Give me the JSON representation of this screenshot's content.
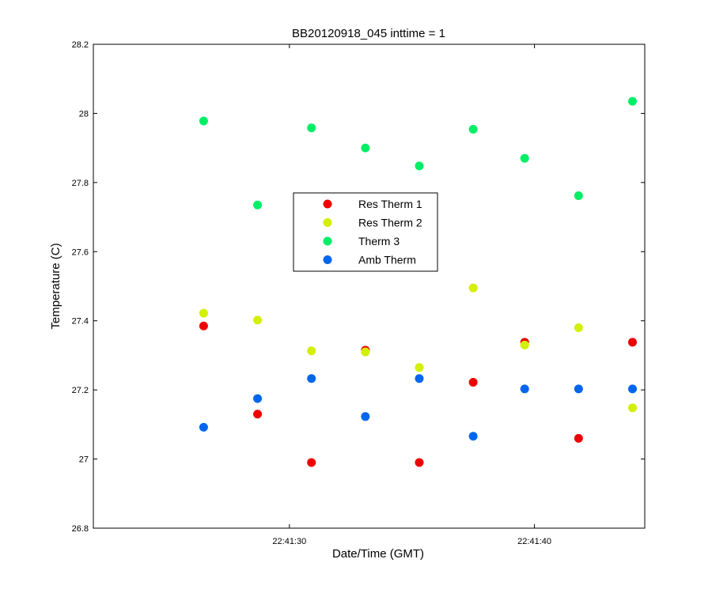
{
  "chart_data": {
    "type": "scatter",
    "title": "BB20120918_045 inttime = 1",
    "xlabel": "Date/Time (GMT)",
    "ylabel": "Temperature (C)",
    "xlim": [
      "22:41:22",
      "22:41:44.5"
    ],
    "ylim": [
      26.8,
      28.2
    ],
    "x_ticks": [
      "22:41:30",
      "22:41:40"
    ],
    "y_ticks": [
      26.8,
      27,
      27.2,
      27.4,
      27.6,
      27.8,
      28,
      28.2
    ],
    "y_tick_labels": [
      "26.8",
      "27",
      "27.2",
      "27.4",
      "27.6",
      "27.8",
      "28",
      "28.2"
    ],
    "grid": false,
    "legend_position": "center",
    "x": [
      "22:41:26.5",
      "22:41:28.7",
      "22:41:30.9",
      "22:41:33.1",
      "22:41:35.3",
      "22:41:37.5",
      "22:41:39.6",
      "22:41:41.8",
      "22:41:44"
    ],
    "series": [
      {
        "name": "Res Therm 1",
        "color": "#ee0000",
        "values": [
          27.385,
          27.13,
          26.99,
          27.315,
          26.99,
          27.222,
          27.338,
          27.06,
          27.338
        ]
      },
      {
        "name": "Res Therm 2",
        "color": "#d2f000",
        "values": [
          27.422,
          27.402,
          27.313,
          27.31,
          27.265,
          27.495,
          27.33,
          27.38,
          27.148
        ]
      },
      {
        "name": "Therm 3",
        "color": "#00ee66",
        "values": [
          27.978,
          27.735,
          27.958,
          27.9,
          27.848,
          27.954,
          27.87,
          27.762,
          28.035
        ]
      },
      {
        "name": "Amb Therm",
        "color": "#0066ee",
        "values": [
          27.092,
          27.175,
          27.233,
          27.123,
          27.233,
          27.066,
          27.203,
          27.203,
          27.203
        ]
      }
    ]
  }
}
